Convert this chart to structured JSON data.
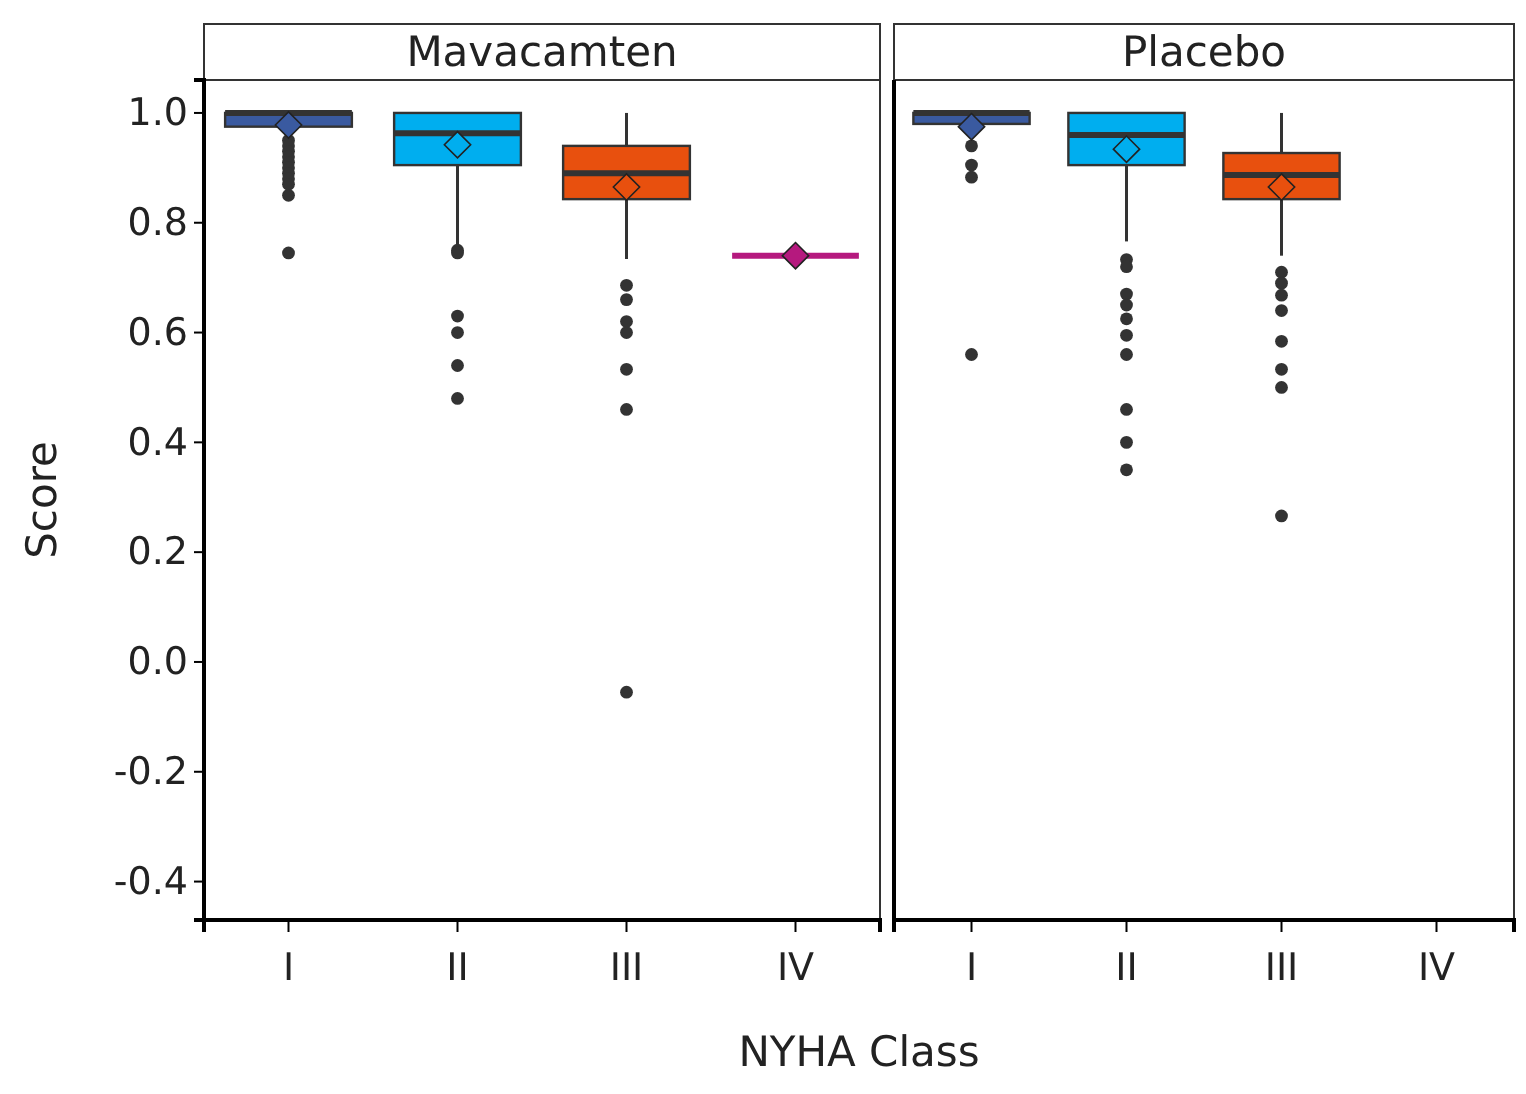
{
  "chart_data": [
    {
      "type": "box",
      "title": "Mavacamten",
      "xlabel": "NYHA Class",
      "ylabel": "Score",
      "categories": [
        "I",
        "II",
        "III",
        "IV"
      ],
      "colors": [
        "#3a5aa0",
        "#00aeef",
        "#e8500e",
        "#b5197e"
      ],
      "ylim": [
        -0.47,
        1.06
      ],
      "yticks": [
        {
          "value": -0.4,
          "label": "-0.4"
        },
        {
          "value": -0.2,
          "label": "-0.2"
        },
        {
          "value": 0,
          "label": "0.0"
        },
        {
          "value": 0.2,
          "label": "0.2"
        },
        {
          "value": 0.4,
          "label": "0.4"
        },
        {
          "value": 0.6,
          "label": "0.6"
        },
        {
          "value": 0.8,
          "label": "0.8"
        },
        {
          "value": 1,
          "label": "1.0"
        }
      ],
      "marker": "diamond",
      "boxes": [
        {
          "low": 0.96,
          "q1": 0.975,
          "median": 1.0,
          "q3": 1.0,
          "high": 1.0,
          "mean": 0.978,
          "outliers": [
            0.95,
            0.94,
            0.93,
            0.92,
            0.91,
            0.9,
            0.89,
            0.88,
            0.87,
            0.85,
            0.745
          ]
        },
        {
          "low": 0.76,
          "q1": 0.905,
          "median": 0.963,
          "q3": 1.0,
          "high": 1.0,
          "mean": 0.942,
          "outliers": [
            0.75,
            0.745,
            0.63,
            0.6,
            0.54,
            0.48
          ]
        },
        {
          "low": 0.734,
          "q1": 0.843,
          "median": 0.89,
          "q3": 0.94,
          "high": 1.0,
          "mean": 0.865,
          "outliers": [
            0.686,
            0.66,
            0.62,
            0.6,
            0.533,
            0.46,
            -0.055
          ]
        },
        {
          "low": 0.74,
          "q1": 0.74,
          "median": 0.74,
          "q3": 0.74,
          "high": 0.74,
          "mean": 0.74
        }
      ]
    },
    {
      "type": "box",
      "title": "Placebo",
      "categories": [
        "I",
        "II",
        "III",
        "IV"
      ],
      "colors": [
        "#3a5aa0",
        "#00aeef",
        "#e8500e",
        null
      ],
      "ylim": [
        -0.47,
        1.06
      ],
      "marker": "diamond",
      "tick_labels": "x",
      "boxes": [
        {
          "low": 0.96,
          "q1": 0.98,
          "median": 1.0,
          "q3": 1.0,
          "high": 1.0,
          "mean": 0.975,
          "outliers": [
            0.94,
            0.905,
            0.883,
            0.56
          ]
        },
        {
          "low": 0.766,
          "q1": 0.905,
          "median": 0.96,
          "q3": 1.0,
          "high": 1.0,
          "mean": 0.934,
          "outliers": [
            0.733,
            0.72,
            0.67,
            0.65,
            0.625,
            0.595,
            0.56,
            0.46,
            0.4,
            0.35
          ]
        },
        {
          "low": 0.74,
          "q1": 0.843,
          "median": 0.887,
          "q3": 0.927,
          "high": 1.0,
          "mean": 0.865,
          "outliers": [
            0.71,
            0.69,
            0.668,
            0.64,
            0.584,
            0.533,
            0.5,
            0.266
          ]
        },
        null
      ]
    }
  ]
}
